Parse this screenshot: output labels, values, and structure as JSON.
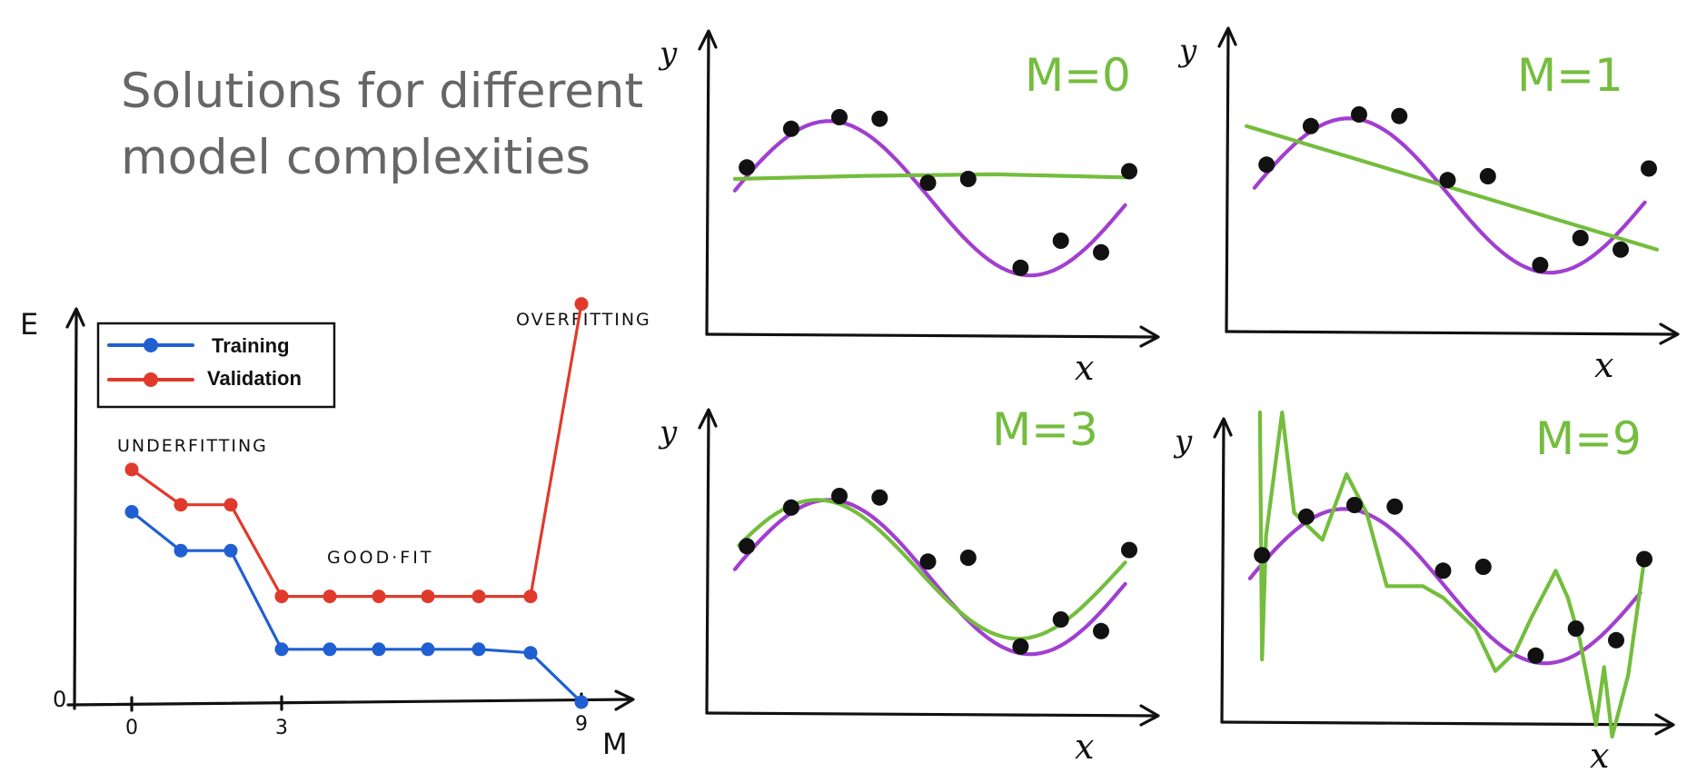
{
  "title": {
    "line1": "Solutions for different",
    "line2": "model complexities"
  },
  "colors": {
    "training": "#1f5fd1",
    "validation": "#e03a2c",
    "fit": "#74bd3d",
    "true_curve": "#a13fd0",
    "points": "#111111",
    "title": "#666666"
  },
  "chart_data": [
    {
      "type": "line",
      "xlabel": "M",
      "ylabel": "E",
      "origin_label": "0",
      "x_ticks": [
        "0",
        "3",
        "9"
      ],
      "legend": {
        "position": "top-left",
        "entries": [
          "Training",
          "Validation"
        ]
      },
      "annotations": [
        "UNDERFITTING",
        "GOOD·FIT",
        "OVERFITTING"
      ],
      "x": [
        0,
        1,
        2,
        3,
        4,
        5,
        6,
        7,
        8,
        9
      ],
      "series": [
        {
          "name": "Training",
          "values": [
            5.4,
            4.3,
            4.3,
            1.5,
            1.5,
            1.5,
            1.5,
            1.5,
            1.4,
            0.0
          ]
        },
        {
          "name": "Validation",
          "values": [
            6.6,
            5.6,
            5.6,
            3.0,
            3.0,
            3.0,
            3.0,
            3.0,
            3.0,
            11.3
          ]
        }
      ],
      "ylim": [
        0,
        12
      ],
      "xlim": [
        -1,
        10
      ]
    },
    {
      "type": "line",
      "label": "M=0",
      "xlabel": "x",
      "ylabel": "y",
      "xlim": [
        0,
        1
      ],
      "ylim": [
        -1.4,
        1.6
      ],
      "points": {
        "x": [
          0.05,
          0.16,
          0.28,
          0.38,
          0.5,
          0.6,
          0.73,
          0.83,
          0.93,
          1.0
        ],
        "y": [
          0.35,
          0.85,
          1.0,
          0.98,
          0.15,
          0.2,
          -0.95,
          -0.6,
          -0.75,
          0.3
        ]
      },
      "fit_y": [
        0.2,
        0.24,
        0.26,
        0.22
      ]
    },
    {
      "type": "line",
      "label": "M=1",
      "xlabel": "x",
      "ylabel": "y",
      "xlim": [
        0,
        1
      ],
      "ylim": [
        -1.4,
        1.6
      ],
      "points": {
        "x": [
          0.05,
          0.16,
          0.28,
          0.38,
          0.5,
          0.6,
          0.73,
          0.83,
          0.93,
          1.0
        ],
        "y": [
          0.35,
          0.85,
          1.0,
          0.98,
          0.15,
          0.2,
          -0.95,
          -0.6,
          -0.75,
          0.3
        ]
      },
      "fit_y": [
        0.85,
        -0.75
      ]
    },
    {
      "type": "line",
      "label": "M=3",
      "xlabel": "x",
      "ylabel": "y",
      "xlim": [
        0,
        1
      ],
      "ylim": [
        -1.4,
        1.6
      ],
      "points": {
        "x": [
          0.05,
          0.16,
          0.28,
          0.38,
          0.5,
          0.6,
          0.73,
          0.83,
          0.93,
          1.0
        ],
        "y": [
          0.35,
          0.85,
          1.0,
          0.98,
          0.15,
          0.2,
          -0.95,
          -0.6,
          -0.75,
          0.3
        ]
      }
    },
    {
      "type": "line",
      "label": "M=9",
      "xlabel": "x",
      "ylabel": "y",
      "xlim": [
        0,
        1
      ],
      "ylim": [
        -1.4,
        1.6
      ],
      "points": {
        "x": [
          0.05,
          0.16,
          0.28,
          0.38,
          0.5,
          0.6,
          0.73,
          0.83,
          0.93,
          1.0
        ],
        "y": [
          0.35,
          0.85,
          1.0,
          0.98,
          0.15,
          0.2,
          -0.95,
          -0.6,
          -0.75,
          0.3
        ]
      }
    }
  ]
}
